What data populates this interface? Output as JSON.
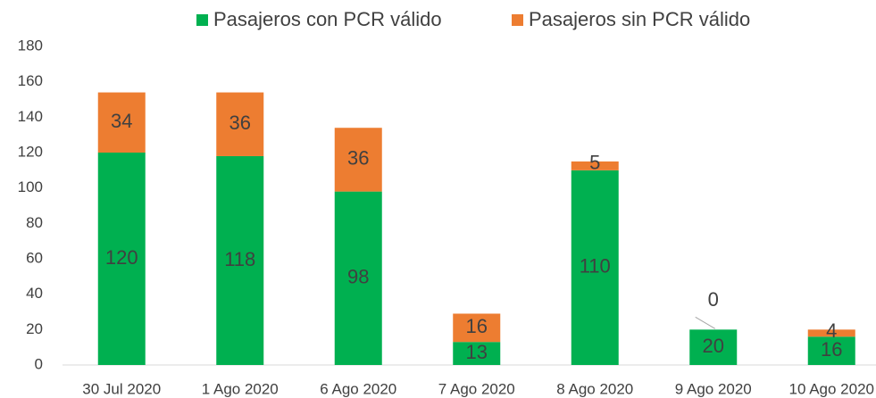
{
  "chart_data": {
    "type": "stacked_bar",
    "categories": [
      "30 Jul 2020",
      "1 Ago 2020",
      "6 Ago 2020",
      "7 Ago 2020",
      "8 Ago 2020",
      "9 Ago 2020",
      "10 Ago 2020"
    ],
    "series": [
      {
        "name": "Pasajeros con PCR válido",
        "color": "#00b050",
        "values": [
          120,
          118,
          98,
          13,
          110,
          20,
          16
        ]
      },
      {
        "name": "Pasajeros sin PCR válido",
        "color": "#ed7d31",
        "values": [
          34,
          36,
          36,
          16,
          5,
          0,
          4
        ]
      }
    ],
    "ylim": [
      0,
      180
    ],
    "yticks": [
      0,
      20,
      40,
      60,
      80,
      100,
      120,
      140,
      160,
      180
    ],
    "grid": false,
    "legend": "top"
  }
}
